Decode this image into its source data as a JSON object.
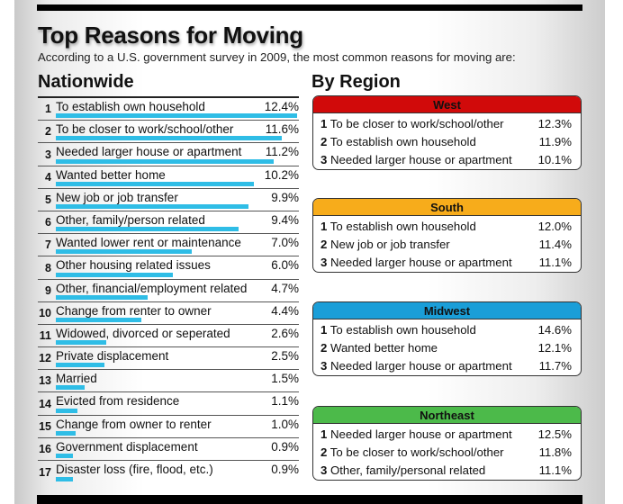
{
  "header": {
    "title": "Top Reasons for Moving",
    "subtitle": "According to a U.S. government survey in 2009, the most common reasons for moving are:"
  },
  "nationwide": {
    "heading": "Nationwide",
    "items": [
      {
        "rank": "1",
        "label": "To establish own household",
        "pct": "12.4%",
        "value": 12.4
      },
      {
        "rank": "2",
        "label": "To be closer to work/school/other",
        "pct": "11.6%",
        "value": 11.6
      },
      {
        "rank": "3",
        "label": "Needed larger house or apartment",
        "pct": "11.2%",
        "value": 11.2
      },
      {
        "rank": "4",
        "label": "Wanted better home",
        "pct": "10.2%",
        "value": 10.2
      },
      {
        "rank": "5",
        "label": "New job or job transfer",
        "pct": "9.9%",
        "value": 9.9
      },
      {
        "rank": "6",
        "label": "Other, family/person related",
        "pct": "9.4%",
        "value": 9.4
      },
      {
        "rank": "7",
        "label": "Wanted lower rent or maintenance",
        "pct": "7.0%",
        "value": 7.0
      },
      {
        "rank": "8",
        "label": "Other housing related issues",
        "pct": "6.0%",
        "value": 6.0
      },
      {
        "rank": "9",
        "label": "Other, financial/employment related",
        "pct": "4.7%",
        "value": 4.7
      },
      {
        "rank": "10",
        "label": "Change from renter to owner",
        "pct": "4.4%",
        "value": 4.4
      },
      {
        "rank": "11",
        "label": "Widowed, divorced or seperated",
        "pct": "2.6%",
        "value": 2.6
      },
      {
        "rank": "12",
        "label": "Private displacement",
        "pct": "2.5%",
        "value": 2.5
      },
      {
        "rank": "13",
        "label": "Married",
        "pct": "1.5%",
        "value": 1.5
      },
      {
        "rank": "14",
        "label": "Evicted from residence",
        "pct": "1.1%",
        "value": 1.1
      },
      {
        "rank": "15",
        "label": "Change from owner to renter",
        "pct": "1.0%",
        "value": 1.0
      },
      {
        "rank": "16",
        "label": "Government displacement",
        "pct": "0.9%",
        "value": 0.9
      },
      {
        "rank": "17",
        "label": "Disaster loss (fire, flood, etc.)",
        "pct": "0.9%",
        "value": 0.9
      }
    ]
  },
  "by_region": {
    "heading": "By Region",
    "regions": [
      {
        "name": "West",
        "color": "#d10a0a",
        "items": [
          {
            "rank": "1",
            "label": "To be closer to work/school/other",
            "pct": "12.3%"
          },
          {
            "rank": "2",
            "label": "To establish own household",
            "pct": "11.9%"
          },
          {
            "rank": "3",
            "label": "Needed larger house or apartment",
            "pct": "10.1%"
          }
        ]
      },
      {
        "name": "South",
        "color": "#f7ac1b",
        "items": [
          {
            "rank": "1",
            "label": "To establish own household",
            "pct": "12.0%"
          },
          {
            "rank": "2",
            "label": "New job or job transfer",
            "pct": "11.4%"
          },
          {
            "rank": "3",
            "label": "Needed larger house or apartment",
            "pct": "11.1%"
          }
        ]
      },
      {
        "name": "Midwest",
        "color": "#1a9ed8",
        "items": [
          {
            "rank": "1",
            "label": "To establish own household",
            "pct": "14.6%"
          },
          {
            "rank": "2",
            "label": "Wanted better home",
            "pct": "12.1%"
          },
          {
            "rank": "3",
            "label": "Needed larger house or apartment",
            "pct": "11.7%"
          }
        ]
      },
      {
        "name": "Northeast",
        "color": "#4cba4a",
        "items": [
          {
            "rank": "1",
            "label": "Needed larger house or apartment",
            "pct": "12.5%"
          },
          {
            "rank": "2",
            "label": "To be closer to work/school/other",
            "pct": "11.8%"
          },
          {
            "rank": "3",
            "label": "Other, family/personal related",
            "pct": "11.1%"
          }
        ]
      }
    ]
  },
  "colors": {
    "bar": "#2fbde6"
  },
  "chart_data": [
    {
      "type": "bar",
      "title": "Nationwide",
      "orientation": "horizontal",
      "categories": [
        "To establish own household",
        "To be closer to work/school/other",
        "Needed larger house or apartment",
        "Wanted better home",
        "New job or job transfer",
        "Other, family/person related",
        "Wanted lower rent or maintenance",
        "Other housing related issues",
        "Other, financial/employment related",
        "Change from renter to owner",
        "Widowed, divorced or seperated",
        "Private displacement",
        "Married",
        "Evicted from residence",
        "Change from owner to renter",
        "Government displacement",
        "Disaster loss (fire, flood, etc.)"
      ],
      "values": [
        12.4,
        11.6,
        11.2,
        10.2,
        9.9,
        9.4,
        7.0,
        6.0,
        4.7,
        4.4,
        2.6,
        2.5,
        1.5,
        1.1,
        1.0,
        0.9,
        0.9
      ],
      "unit": "%",
      "color": "#2fbde6"
    },
    {
      "type": "table",
      "title": "By Region",
      "series": [
        {
          "name": "West",
          "categories": [
            "To be closer to work/school/other",
            "To establish own household",
            "Needed larger house or apartment"
          ],
          "values": [
            12.3,
            11.9,
            10.1
          ]
        },
        {
          "name": "South",
          "categories": [
            "To establish own household",
            "New job or job transfer",
            "Needed larger house or apartment"
          ],
          "values": [
            12.0,
            11.4,
            11.1
          ]
        },
        {
          "name": "Midwest",
          "categories": [
            "To establish own household",
            "Wanted better home",
            "Needed larger house or apartment"
          ],
          "values": [
            14.6,
            12.1,
            11.7
          ]
        },
        {
          "name": "Northeast",
          "categories": [
            "Needed larger house or apartment",
            "To be closer to work/school/other",
            "Other, family/personal related"
          ],
          "values": [
            12.5,
            11.8,
            11.1
          ]
        }
      ]
    }
  ]
}
